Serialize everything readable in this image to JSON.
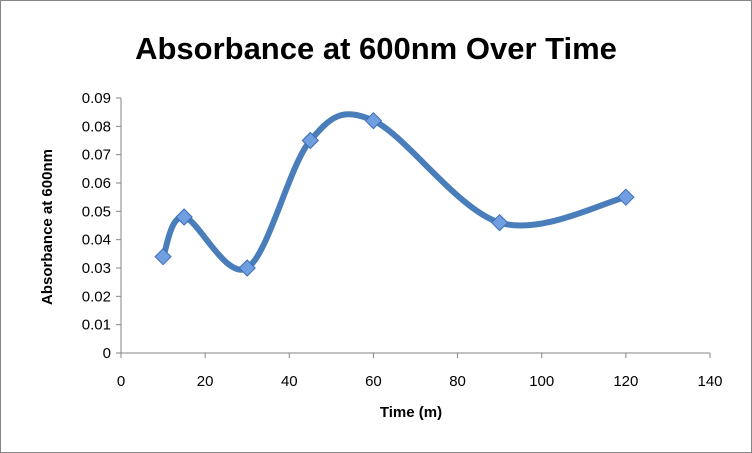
{
  "chart_data": {
    "type": "line",
    "title": "Absorbance at 600nm Over Time",
    "xlabel": "Time (m)",
    "ylabel": "Absorbance at 600nm",
    "xlim": [
      0,
      140
    ],
    "ylim": [
      0,
      0.09
    ],
    "x_ticks": [
      0,
      20,
      40,
      60,
      80,
      100,
      120,
      140
    ],
    "y_ticks": [
      0,
      0.01,
      0.02,
      0.03,
      0.04,
      0.05,
      0.06,
      0.07,
      0.08,
      0.09
    ],
    "x_tick_labels": [
      "0",
      "20",
      "40",
      "60",
      "80",
      "100",
      "120",
      "140"
    ],
    "y_tick_labels": [
      "0",
      "0.01",
      "0.02",
      "0.03",
      "0.04",
      "0.05",
      "0.06",
      "0.07",
      "0.08",
      "0.09"
    ],
    "grid": false,
    "smooth": true,
    "marker": "diamond",
    "series": [
      {
        "name": "Absorbance",
        "color": "#4a7ebb",
        "marker_color": "#6f9fe0",
        "x": [
          10,
          15,
          30,
          45,
          60,
          90,
          120
        ],
        "y": [
          0.034,
          0.048,
          0.03,
          0.075,
          0.082,
          0.046,
          0.055
        ]
      }
    ]
  }
}
